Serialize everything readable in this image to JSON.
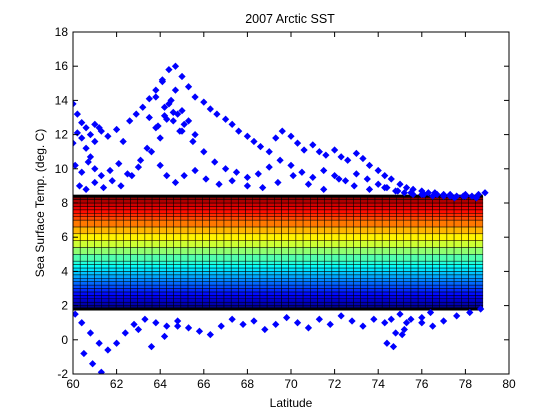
{
  "chart_data": {
    "type": "scatter",
    "title": "2007 Arctic SST",
    "xlabel": "Latitude",
    "ylabel": "Sea Surface Temp. (deg. C)",
    "xlim": [
      60,
      80
    ],
    "ylim": [
      -2,
      18
    ],
    "xticks": [
      60,
      62,
      64,
      66,
      68,
      70,
      72,
      74,
      76,
      78,
      80
    ],
    "yticks": [
      -2,
      0,
      2,
      4,
      6,
      8,
      10,
      12,
      14,
      16,
      18
    ],
    "grid": false,
    "legend": "none",
    "series": [
      {
        "marker": "diamond",
        "color": "#0000ff",
        "x": [
          60.0,
          60.2,
          60.4,
          60.6,
          60.8,
          61.0,
          61.3,
          61.6,
          62.0,
          62.3,
          62.6,
          62.9,
          63.2,
          63.5,
          63.8,
          64.1,
          64.4,
          64.7,
          65.0,
          65.3,
          65.6,
          66.0,
          66.3,
          66.6,
          67.0,
          67.3,
          67.6,
          68.0,
          68.3,
          68.6,
          69.0,
          69.3,
          69.6,
          70.0,
          70.3,
          70.6,
          71.0,
          71.3,
          71.6,
          72.0,
          72.3,
          72.6,
          73.0,
          73.3,
          73.6,
          74.0,
          74.3,
          74.6,
          75.0,
          75.3,
          75.6,
          76.0,
          76.3,
          76.6,
          77.0,
          77.3,
          77.6,
          78.0,
          78.3,
          78.6,
          78.9,
          60.1,
          60.4,
          60.7,
          61.0,
          61.3,
          61.7,
          62.1,
          62.5,
          63.0,
          63.4,
          63.8,
          64.2,
          64.6,
          65.0,
          65.5,
          66.0,
          66.5,
          67.0,
          67.5,
          68.0,
          68.5,
          69.0,
          69.5,
          70.0,
          70.5,
          71.0,
          71.5,
          72.0,
          72.5,
          73.0,
          73.5,
          74.0,
          74.4,
          74.8,
          75.2,
          75.6,
          76.0,
          76.5,
          77.0,
          77.5,
          78.0,
          78.5,
          60.3,
          60.6,
          61.0,
          61.4,
          61.8,
          62.2,
          62.7,
          63.1,
          63.6,
          64.0,
          64.3,
          64.7,
          65.1,
          65.6,
          66.1,
          66.7,
          67.3,
          68.0,
          68.7,
          69.4,
          70.1,
          70.8,
          71.5,
          72.2,
          72.9,
          73.6,
          74.3,
          74.9,
          75.5,
          76.1,
          76.7,
          77.3,
          77.9,
          78.5,
          60.1,
          60.4,
          60.8,
          61.2,
          61.6,
          62.0,
          62.4,
          62.8,
          63.3,
          63.8,
          64.3,
          64.8,
          65.3,
          65.8,
          66.3,
          66.8,
          67.3,
          67.8,
          68.3,
          68.8,
          69.3,
          69.8,
          70.3,
          70.8,
          71.3,
          71.8,
          72.3,
          72.8,
          73.3,
          73.8,
          74.3,
          74.7,
          75.1,
          75.5,
          76.0,
          76.5,
          77.0,
          77.6,
          78.2,
          78.7,
          63.5,
          63.8,
          64.1,
          64.4,
          64.7,
          65.0,
          65.3,
          65.6,
          63.9,
          64.2,
          64.5,
          64.8,
          65.1,
          64.0,
          64.3,
          64.6,
          64.9,
          60.0,
          60.2,
          60.4,
          60.6,
          60.8,
          61.0,
          61.2,
          60.5,
          60.9,
          61.3,
          63.0,
          63.6,
          64.2,
          64.8,
          74.4,
          74.8,
          75.2,
          75.0,
          74.6,
          75.3,
          76.0,
          76.4
        ],
        "y": [
          11.5,
          12.1,
          11.8,
          12.4,
          12.0,
          12.6,
          12.2,
          11.9,
          12.3,
          11.6,
          12.8,
          13.2,
          13.6,
          14.1,
          14.6,
          15.2,
          15.8,
          16.0,
          15.4,
          14.8,
          14.2,
          13.9,
          13.5,
          13.2,
          12.9,
          12.6,
          12.2,
          11.9,
          11.6,
          11.3,
          11.0,
          11.8,
          12.2,
          11.9,
          11.5,
          11.1,
          11.4,
          11.0,
          10.8,
          11.1,
          10.7,
          10.5,
          10.9,
          10.6,
          10.2,
          9.9,
          9.6,
          9.4,
          9.1,
          8.9,
          8.8,
          8.7,
          8.6,
          8.6,
          8.5,
          8.5,
          8.4,
          8.5,
          8.4,
          8.5,
          8.6,
          10.2,
          9.8,
          10.4,
          10.0,
          9.6,
          9.9,
          10.3,
          9.7,
          10.1,
          11.2,
          12.4,
          13.1,
          12.8,
          12.2,
          11.6,
          11.0,
          10.4,
          10.0,
          9.8,
          9.5,
          9.7,
          10.1,
          10.5,
          10.2,
          9.8,
          9.5,
          9.9,
          9.6,
          9.3,
          9.7,
          9.4,
          9.1,
          8.9,
          8.7,
          8.6,
          8.5,
          8.5,
          8.4,
          8.4,
          8.3,
          8.4,
          8.3,
          9.0,
          8.8,
          9.2,
          8.9,
          9.3,
          9.0,
          9.6,
          10.5,
          11.0,
          10.2,
          9.6,
          9.2,
          9.6,
          9.9,
          9.4,
          9.1,
          9.3,
          9.0,
          8.9,
          9.2,
          9.6,
          9.1,
          8.8,
          9.4,
          9.0,
          8.8,
          8.9,
          8.7,
          8.6,
          8.5,
          8.5,
          8.4,
          8.4,
          8.3,
          1.5,
          1.0,
          0.4,
          -0.2,
          -0.6,
          -0.2,
          0.4,
          0.9,
          1.2,
          1.0,
          0.8,
          1.1,
          0.7,
          0.5,
          0.3,
          0.8,
          1.2,
          0.9,
          1.1,
          0.6,
          0.9,
          1.3,
          1.0,
          0.7,
          1.2,
          0.9,
          1.4,
          1.1,
          0.8,
          1.2,
          1.0,
          -0.4,
          0.3,
          1.2,
          1.0,
          0.8,
          1.1,
          1.4,
          1.6,
          1.8,
          13.0,
          14.2,
          15.1,
          13.8,
          14.6,
          13.4,
          12.8,
          12.0,
          12.5,
          13.6,
          14.0,
          13.2,
          12.6,
          11.8,
          12.9,
          13.3,
          12.2,
          13.8,
          13.2,
          12.7,
          11.2,
          10.7,
          11.6,
          12.4,
          -0.8,
          -1.4,
          -1.9,
          0.6,
          -0.4,
          0.2,
          0.8,
          -0.2,
          0.4,
          0.6,
          1.5,
          1.2,
          1.0,
          1.3,
          1.6
        ]
      }
    ],
    "surface": {
      "colormap": "jet",
      "x_range": [
        60,
        78.8
      ],
      "y_range": [
        1.8,
        8.4
      ],
      "levels": [
        1.8,
        2.0,
        2.2,
        2.4,
        2.6,
        2.8,
        3.0,
        3.2,
        3.4,
        3.6,
        3.8,
        4.0,
        4.2,
        4.4,
        4.6,
        5.0,
        5.4,
        5.8,
        6.2,
        6.6,
        7.0,
        7.2,
        7.4,
        7.6,
        7.8,
        8.0,
        8.2,
        8.4
      ],
      "x_columns": 57
    }
  }
}
